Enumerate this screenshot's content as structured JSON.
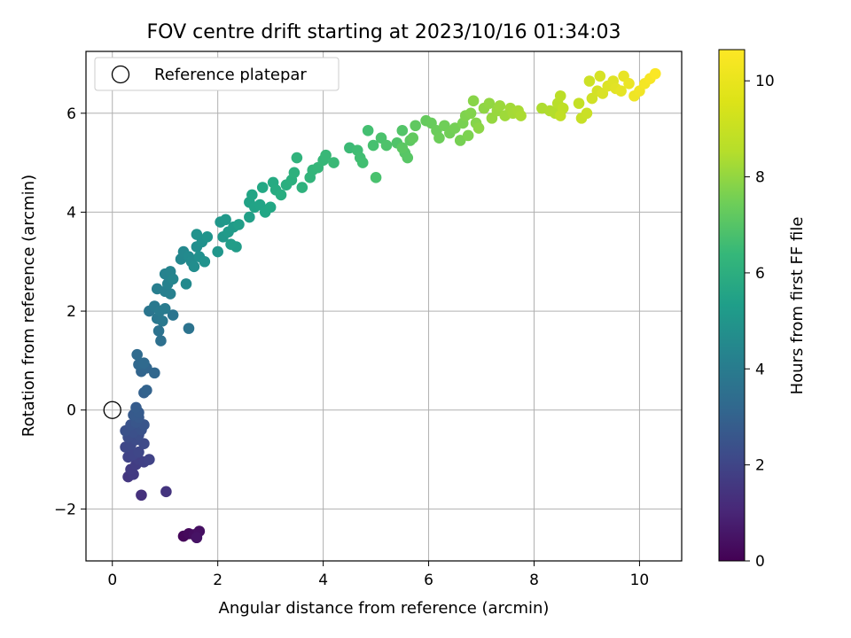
{
  "chart_data": {
    "type": "scatter",
    "title": "FOV centre drift starting at 2023/10/16 01:34:03",
    "xlabel": "Angular distance from reference (arcmin)",
    "ylabel": "Rotation from reference (arcmin)",
    "colorbar_label": "Hours from first FF file",
    "xlim": [
      -0.5,
      10.8
    ],
    "ylim": [
      -3.05,
      7.25
    ],
    "xticks": [
      0,
      2,
      4,
      6,
      8,
      10
    ],
    "yticks": [
      -2,
      0,
      2,
      4,
      6
    ],
    "colorbar_range": [
      0,
      10.65
    ],
    "colorbar_ticks": [
      0,
      2,
      4,
      6,
      8,
      10
    ],
    "colormap": "viridis",
    "grid": true,
    "legend": {
      "placement": "top-left",
      "entries": [
        "Reference platepar"
      ]
    },
    "reference_point": {
      "x": 0,
      "y": 0,
      "label": "Reference platepar"
    },
    "points": [
      [
        1.35,
        -2.55,
        0.15
      ],
      [
        1.45,
        -2.5,
        0.25
      ],
      [
        1.55,
        -2.52,
        0.35
      ],
      [
        1.65,
        -2.45,
        0.45
      ],
      [
        1.6,
        -2.58,
        0.55
      ],
      [
        0.55,
        -1.72,
        1.5
      ],
      [
        1.02,
        -1.65,
        1.6
      ],
      [
        0.3,
        -1.35,
        1.7
      ],
      [
        0.4,
        -1.3,
        1.8
      ],
      [
        0.35,
        -1.2,
        1.85
      ],
      [
        0.45,
        -1.1,
        1.9
      ],
      [
        0.5,
        -1.0,
        2.0
      ],
      [
        0.6,
        -1.05,
        2.05
      ],
      [
        0.7,
        -1.0,
        2.1
      ],
      [
        0.3,
        -0.95,
        2.15
      ],
      [
        0.4,
        -0.9,
        2.2
      ],
      [
        0.5,
        -0.85,
        2.25
      ],
      [
        0.25,
        -0.75,
        2.3
      ],
      [
        0.35,
        -0.7,
        2.35
      ],
      [
        0.6,
        -0.68,
        2.4
      ],
      [
        0.45,
        -0.6,
        2.45
      ],
      [
        0.3,
        -0.55,
        2.5
      ],
      [
        0.5,
        -0.5,
        2.55
      ],
      [
        0.4,
        -0.45,
        2.6
      ],
      [
        0.25,
        -0.42,
        2.65
      ],
      [
        0.55,
        -0.4,
        2.7
      ],
      [
        0.35,
        -0.3,
        2.75
      ],
      [
        0.6,
        -0.3,
        2.8
      ],
      [
        0.45,
        -0.25,
        2.85
      ],
      [
        0.5,
        -0.15,
        2.95
      ],
      [
        0.4,
        -0.1,
        3.0
      ],
      [
        0.5,
        -0.05,
        3.05
      ],
      [
        0.45,
        0.05,
        3.1
      ],
      [
        0.6,
        0.35,
        3.3
      ],
      [
        0.65,
        0.4,
        3.35
      ],
      [
        0.55,
        0.78,
        3.45
      ],
      [
        0.65,
        0.85,
        3.5
      ],
      [
        0.8,
        0.75,
        3.55
      ],
      [
        0.5,
        0.92,
        3.6
      ],
      [
        0.6,
        0.95,
        3.65
      ],
      [
        0.47,
        1.12,
        3.7
      ],
      [
        0.92,
        1.4,
        3.9
      ],
      [
        0.88,
        1.6,
        4.0
      ],
      [
        1.45,
        1.65,
        4.05
      ],
      [
        1.15,
        1.92,
        4.1
      ],
      [
        0.7,
        2.0,
        4.15
      ],
      [
        0.85,
        1.85,
        4.2
      ],
      [
        0.95,
        1.8,
        4.25
      ],
      [
        0.8,
        2.1,
        4.3
      ],
      [
        0.9,
        2.0,
        4.35
      ],
      [
        1.0,
        2.05,
        4.4
      ],
      [
        0.85,
        2.45,
        4.5
      ],
      [
        1.0,
        2.4,
        4.55
      ],
      [
        1.1,
        2.35,
        4.6
      ],
      [
        1.05,
        2.55,
        4.65
      ],
      [
        1.0,
        2.75,
        4.7
      ],
      [
        1.1,
        2.8,
        4.75
      ],
      [
        1.15,
        2.65,
        4.8
      ],
      [
        1.3,
        3.05,
        4.9
      ],
      [
        1.35,
        3.2,
        4.95
      ],
      [
        1.4,
        2.55,
        5.0
      ],
      [
        1.45,
        3.1,
        5.05
      ],
      [
        1.5,
        3.0,
        5.1
      ],
      [
        1.55,
        2.9,
        5.15
      ],
      [
        1.6,
        3.3,
        5.2
      ],
      [
        1.65,
        3.1,
        5.3
      ],
      [
        1.7,
        3.4,
        5.35
      ],
      [
        1.75,
        3.0,
        5.4
      ],
      [
        1.6,
        3.55,
        5.45
      ],
      [
        1.8,
        3.5,
        5.5
      ],
      [
        2.0,
        3.2,
        5.55
      ],
      [
        2.05,
        3.8,
        5.6
      ],
      [
        2.1,
        3.5,
        5.65
      ],
      [
        2.15,
        3.85,
        5.7
      ],
      [
        2.2,
        3.6,
        5.75
      ],
      [
        2.3,
        3.7,
        5.8
      ],
      [
        2.35,
        3.3,
        5.85
      ],
      [
        2.25,
        3.35,
        5.9
      ],
      [
        2.4,
        3.75,
        5.95
      ],
      [
        2.6,
        3.9,
        6.0
      ],
      [
        2.6,
        4.2,
        6.1
      ],
      [
        2.7,
        4.1,
        6.15
      ],
      [
        2.8,
        4.15,
        6.2
      ],
      [
        2.65,
        4.35,
        6.25
      ],
      [
        2.9,
        4.0,
        6.3
      ],
      [
        3.0,
        4.1,
        6.35
      ],
      [
        2.85,
        4.5,
        6.4
      ],
      [
        3.05,
        4.6,
        6.5
      ],
      [
        3.1,
        4.45,
        6.55
      ],
      [
        3.2,
        4.35,
        6.6
      ],
      [
        3.3,
        4.55,
        6.65
      ],
      [
        3.4,
        4.65,
        6.7
      ],
      [
        3.45,
        4.8,
        6.75
      ],
      [
        3.6,
        4.5,
        6.8
      ],
      [
        3.5,
        5.1,
        6.85
      ],
      [
        3.75,
        4.7,
        6.9
      ],
      [
        3.8,
        4.85,
        6.95
      ],
      [
        3.9,
        4.9,
        7.0
      ],
      [
        4.0,
        5.05,
        7.05
      ],
      [
        4.05,
        5.15,
        7.1
      ],
      [
        4.2,
        5.0,
        7.15
      ],
      [
        4.5,
        5.3,
        7.2
      ],
      [
        4.65,
        5.25,
        7.3
      ],
      [
        4.7,
        5.1,
        7.35
      ],
      [
        4.75,
        5.0,
        7.4
      ],
      [
        4.85,
        5.65,
        7.45
      ],
      [
        4.95,
        5.35,
        7.5
      ],
      [
        5.0,
        4.7,
        7.55
      ],
      [
        5.1,
        5.5,
        7.6
      ],
      [
        5.2,
        5.35,
        7.65
      ],
      [
        5.4,
        5.4,
        7.7
      ],
      [
        5.5,
        5.65,
        7.75
      ],
      [
        5.55,
        5.2,
        7.8
      ],
      [
        5.6,
        5.1,
        7.85
      ],
      [
        5.5,
        5.3,
        7.9
      ],
      [
        5.65,
        5.45,
        7.95
      ],
      [
        5.75,
        5.75,
        8.0
      ],
      [
        5.7,
        5.5,
        8.05
      ],
      [
        5.95,
        5.85,
        8.1
      ],
      [
        6.05,
        5.8,
        8.15
      ],
      [
        6.15,
        5.65,
        8.2
      ],
      [
        6.2,
        5.5,
        8.25
      ],
      [
        6.3,
        5.75,
        8.3
      ],
      [
        6.4,
        5.6,
        8.35
      ],
      [
        6.5,
        5.7,
        8.4
      ],
      [
        6.6,
        5.45,
        8.45
      ],
      [
        6.65,
        5.8,
        8.5
      ],
      [
        6.75,
        5.55,
        8.55
      ],
      [
        6.7,
        5.95,
        8.6
      ],
      [
        6.8,
        6.0,
        8.65
      ],
      [
        6.9,
        5.8,
        8.7
      ],
      [
        6.85,
        6.25,
        8.75
      ],
      [
        6.95,
        5.7,
        8.8
      ],
      [
        7.05,
        6.1,
        8.85
      ],
      [
        7.15,
        6.2,
        8.9
      ],
      [
        7.2,
        5.9,
        8.95
      ],
      [
        7.3,
        6.05,
        9.0
      ],
      [
        7.35,
        6.15,
        9.05
      ],
      [
        7.45,
        5.95,
        9.1
      ],
      [
        7.55,
        6.1,
        9.15
      ],
      [
        7.6,
        6.0,
        9.2
      ],
      [
        7.7,
        6.05,
        9.25
      ],
      [
        7.75,
        5.95,
        9.3
      ],
      [
        8.15,
        6.1,
        9.35
      ],
      [
        8.3,
        6.05,
        9.4
      ],
      [
        8.4,
        6.0,
        9.45
      ],
      [
        8.45,
        6.2,
        9.5
      ],
      [
        8.5,
        6.35,
        9.55
      ],
      [
        8.55,
        6.1,
        9.6
      ],
      [
        8.5,
        5.95,
        9.65
      ],
      [
        8.85,
        6.2,
        9.7
      ],
      [
        8.9,
        5.9,
        9.75
      ],
      [
        9.0,
        6.0,
        9.8
      ],
      [
        9.05,
        6.65,
        9.85
      ],
      [
        9.1,
        6.3,
        9.9
      ],
      [
        9.2,
        6.45,
        9.95
      ],
      [
        9.25,
        6.75,
        10.0
      ],
      [
        9.3,
        6.4,
        10.05
      ],
      [
        9.4,
        6.55,
        10.1
      ],
      [
        9.5,
        6.65,
        10.15
      ],
      [
        9.55,
        6.5,
        10.2
      ],
      [
        9.65,
        6.45,
        10.25
      ],
      [
        9.7,
        6.75,
        10.3
      ],
      [
        9.8,
        6.6,
        10.35
      ],
      [
        9.9,
        6.35,
        10.4
      ],
      [
        10.0,
        6.45,
        10.45
      ],
      [
        10.1,
        6.6,
        10.5
      ],
      [
        10.2,
        6.7,
        10.55
      ],
      [
        10.3,
        6.8,
        10.6
      ]
    ]
  }
}
